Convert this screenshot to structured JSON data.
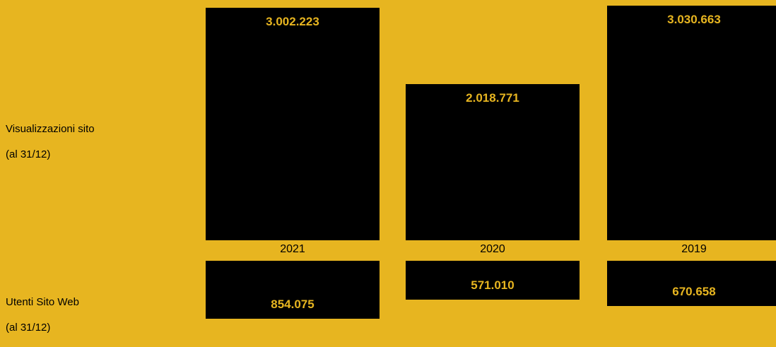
{
  "chart_data": [
    {
      "type": "bar",
      "label_lines": [
        "Visualizzazioni sito",
        "(al 31/12)"
      ],
      "categories": [
        "2021",
        "2020",
        "2019"
      ],
      "values": [
        3002223,
        2018771,
        3030663
      ],
      "value_labels": [
        "3.002.223",
        "2.018.771",
        "3.030.663"
      ],
      "ylim": [
        0,
        3100000
      ]
    },
    {
      "type": "bar",
      "label_lines": [
        "Utenti Sito Web",
        "(al 31/12)"
      ],
      "categories": [
        "2021",
        "2020",
        "2019"
      ],
      "values": [
        854075,
        571010,
        670658
      ],
      "value_labels": [
        "854.075",
        "571.010",
        "670.658"
      ],
      "ylim": [
        0,
        854075
      ]
    }
  ],
  "colors": {
    "background": "#E7B520",
    "bar": "#000000",
    "value_text": "#E7B520"
  }
}
